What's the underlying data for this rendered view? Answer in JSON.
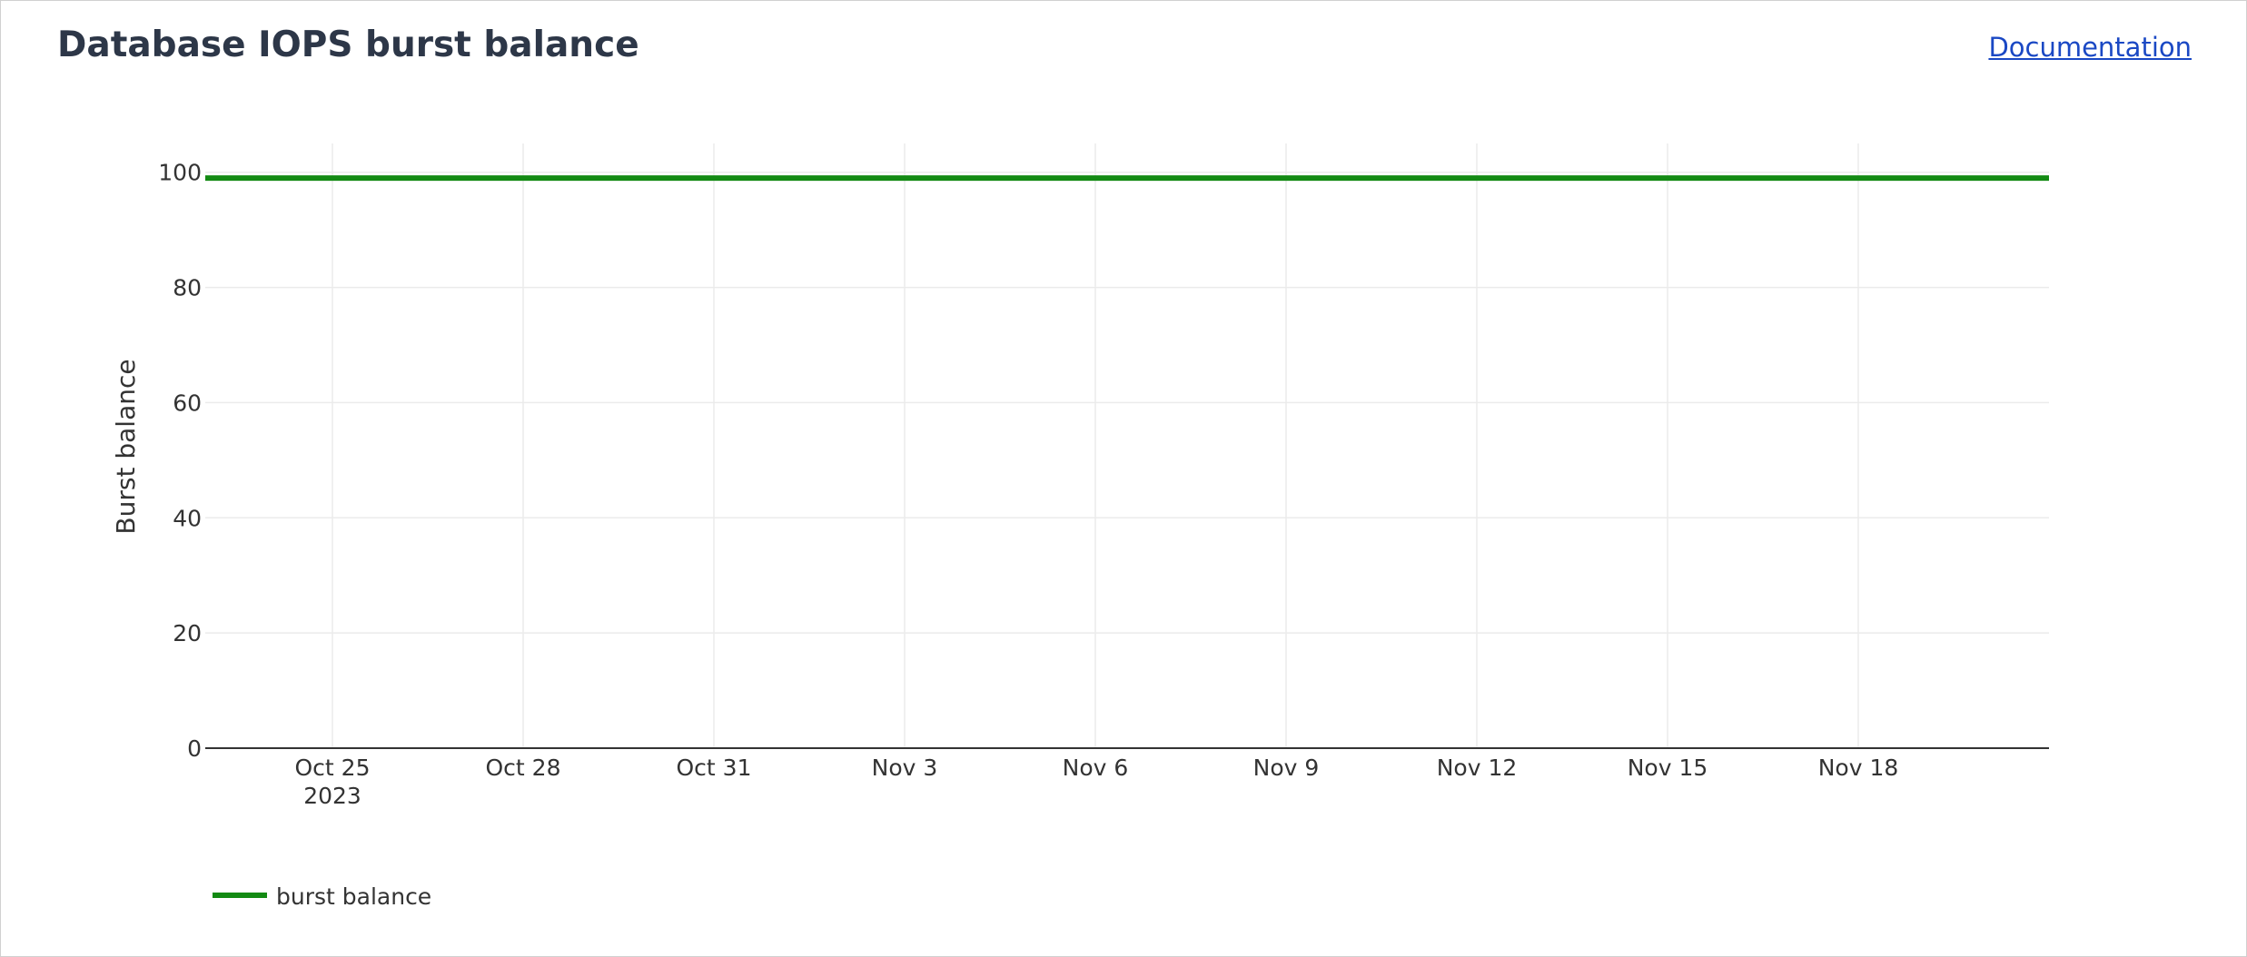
{
  "panel": {
    "title": "Database IOPS burst balance",
    "documentation_link": "Documentation"
  },
  "colors": {
    "series": "#138a13",
    "grid": "#ebebeb",
    "axis_line": "#333333",
    "link": "#1a48c4",
    "title": "#2d3748"
  },
  "chart_data": {
    "type": "line",
    "title": "",
    "xlabel": "",
    "ylabel": "Burst balance",
    "x_type": "date",
    "xlim": [
      "2023-10-23",
      "2023-11-21"
    ],
    "ylim": [
      0,
      105
    ],
    "grid": true,
    "legend_position": "bottom-left",
    "y_ticks": [
      0,
      20,
      40,
      60,
      80,
      100
    ],
    "x_ticks": [
      {
        "date": "2023-10-25",
        "label": "Oct 25",
        "sublabel": "2023"
      },
      {
        "date": "2023-10-28",
        "label": "Oct 28",
        "sublabel": ""
      },
      {
        "date": "2023-10-31",
        "label": "Oct 31",
        "sublabel": ""
      },
      {
        "date": "2023-11-03",
        "label": "Nov 3",
        "sublabel": ""
      },
      {
        "date": "2023-11-06",
        "label": "Nov 6",
        "sublabel": ""
      },
      {
        "date": "2023-11-09",
        "label": "Nov 9",
        "sublabel": ""
      },
      {
        "date": "2023-11-12",
        "label": "Nov 12",
        "sublabel": ""
      },
      {
        "date": "2023-11-15",
        "label": "Nov 15",
        "sublabel": ""
      },
      {
        "date": "2023-11-18",
        "label": "Nov 18",
        "sublabel": ""
      }
    ],
    "series": [
      {
        "name": "burst balance",
        "color": "#138a13",
        "x": [
          "2023-10-23",
          "2023-10-25",
          "2023-10-28",
          "2023-10-31",
          "2023-11-03",
          "2023-11-06",
          "2023-11-09",
          "2023-11-12",
          "2023-11-15",
          "2023-11-18",
          "2023-11-21"
        ],
        "y": [
          99,
          99,
          99,
          99,
          99,
          99,
          99,
          99,
          99,
          99,
          99
        ]
      }
    ]
  }
}
